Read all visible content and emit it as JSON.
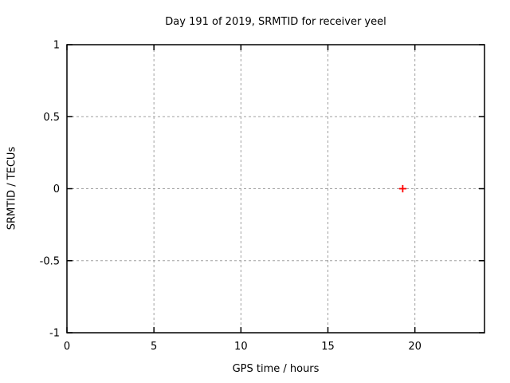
{
  "chart_data": {
    "type": "scatter",
    "title": "Day 191 of 2019, SRMTID for receiver yeel",
    "xlabel": "GPS time / hours",
    "ylabel": "SRMTID / TECUs",
    "xlim": [
      0,
      24
    ],
    "ylim": [
      -1,
      1
    ],
    "x_ticks": [
      0,
      5,
      10,
      15,
      20
    ],
    "x_tick_labels": [
      "0",
      "5",
      "10",
      "15",
      "20"
    ],
    "y_ticks": [
      -1,
      -0.5,
      0,
      0.5,
      1
    ],
    "y_tick_labels": [
      "-1",
      "-0.5",
      "0",
      "0.5",
      "1"
    ],
    "grid": true,
    "legend": "none",
    "series": [
      {
        "name": "SRMTID",
        "marker": "plus",
        "marker_color": "#ff0000",
        "points": [
          {
            "x": 19.3,
            "y": 0
          }
        ]
      }
    ],
    "border_color": "#000000",
    "grid_color": "#a0a0a0",
    "background_color": "#ffffff"
  }
}
